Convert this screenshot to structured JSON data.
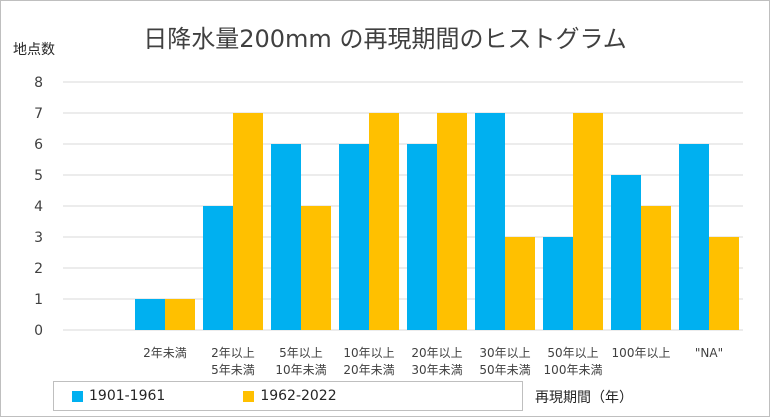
{
  "chart_data": {
    "type": "bar",
    "title": "日降水量200mm の再現期間のヒストグラム",
    "ylabel": "地点数",
    "xlabel": "再現期間（年）",
    "ylim": [
      0,
      8
    ],
    "yticks": [
      0,
      1,
      2,
      3,
      4,
      5,
      6,
      7,
      8
    ],
    "grid": true,
    "legend_position": "bottom-left",
    "categories": [
      [
        "",
        ""
      ],
      [
        "2年未満",
        ""
      ],
      [
        "2年以上",
        "5年未満"
      ],
      [
        "5年以上",
        "10年未満"
      ],
      [
        "10年以上",
        "20年未満"
      ],
      [
        "20年以上",
        "30年未満"
      ],
      [
        "30年以上",
        "50年未満"
      ],
      [
        "50年以上",
        "100年未満"
      ],
      [
        "100年以上",
        ""
      ],
      [
        "\"NA\"",
        ""
      ]
    ],
    "series": [
      {
        "name": "1901-1961",
        "color": "#00B0F0",
        "values": [
          0,
          1,
          4,
          6,
          6,
          6,
          7,
          3,
          5,
          6
        ]
      },
      {
        "name": "1962-2022",
        "color": "#FFC000",
        "values": [
          0,
          1,
          7,
          4,
          7,
          7,
          3,
          7,
          4,
          3
        ]
      }
    ]
  }
}
